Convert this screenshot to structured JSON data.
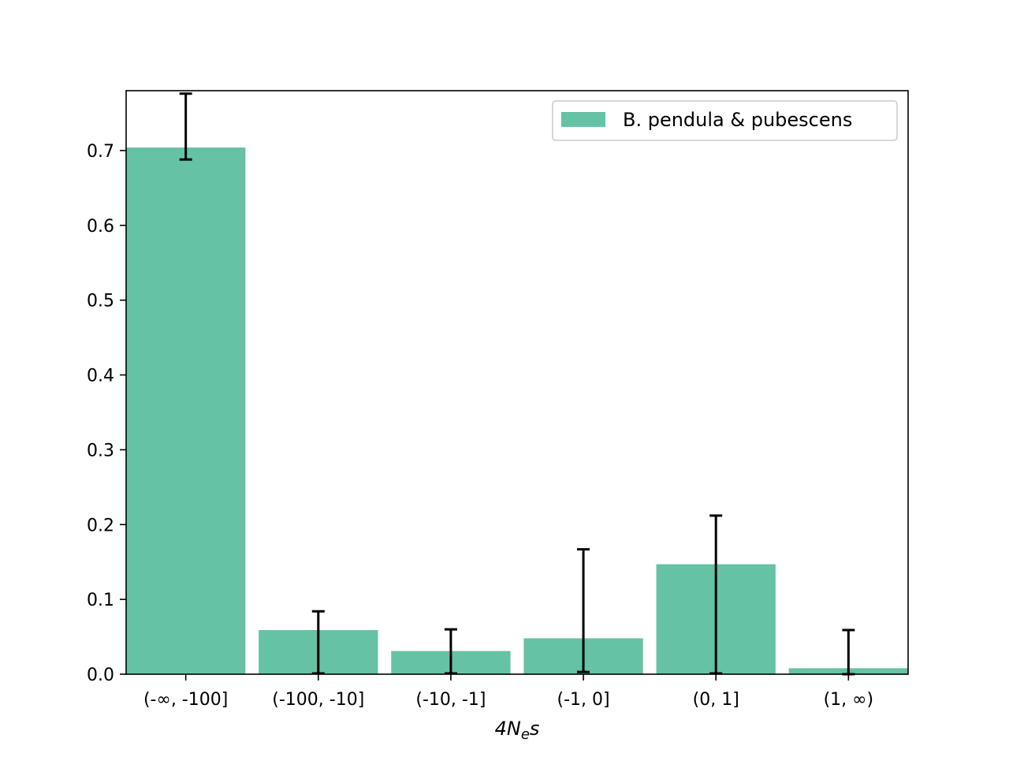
{
  "chart_data": {
    "type": "bar",
    "categories": [
      "(-∞, -100]",
      "(-100, -10]",
      "(-10, -1]",
      "(-1, 0]",
      "(0, 1]",
      "(1, ∞)"
    ],
    "series": [
      {
        "name": "B. pendula & pubescens",
        "color": "#66c2a5",
        "values": [
          0.704,
          0.059,
          0.031,
          0.048,
          0.147,
          0.008
        ],
        "error_low": [
          0.688,
          0.001,
          0.001,
          0.003,
          0.001,
          0.0
        ],
        "error_high": [
          0.776,
          0.084,
          0.06,
          0.167,
          0.212,
          0.059
        ]
      }
    ],
    "xlabel": {
      "base": "4",
      "N": "N",
      "sub": "e",
      "s": "s"
    },
    "ylabel": "",
    "ylim": [
      0,
      0.78
    ],
    "yticks": [
      0.0,
      0.1,
      0.2,
      0.3,
      0.4,
      0.5,
      0.6,
      0.7
    ],
    "ytick_labels": [
      "0.0",
      "0.1",
      "0.2",
      "0.3",
      "0.4",
      "0.5",
      "0.6",
      "0.7"
    ],
    "grid": false,
    "legend_position": "top-right",
    "error_bar_color": "#000000"
  }
}
